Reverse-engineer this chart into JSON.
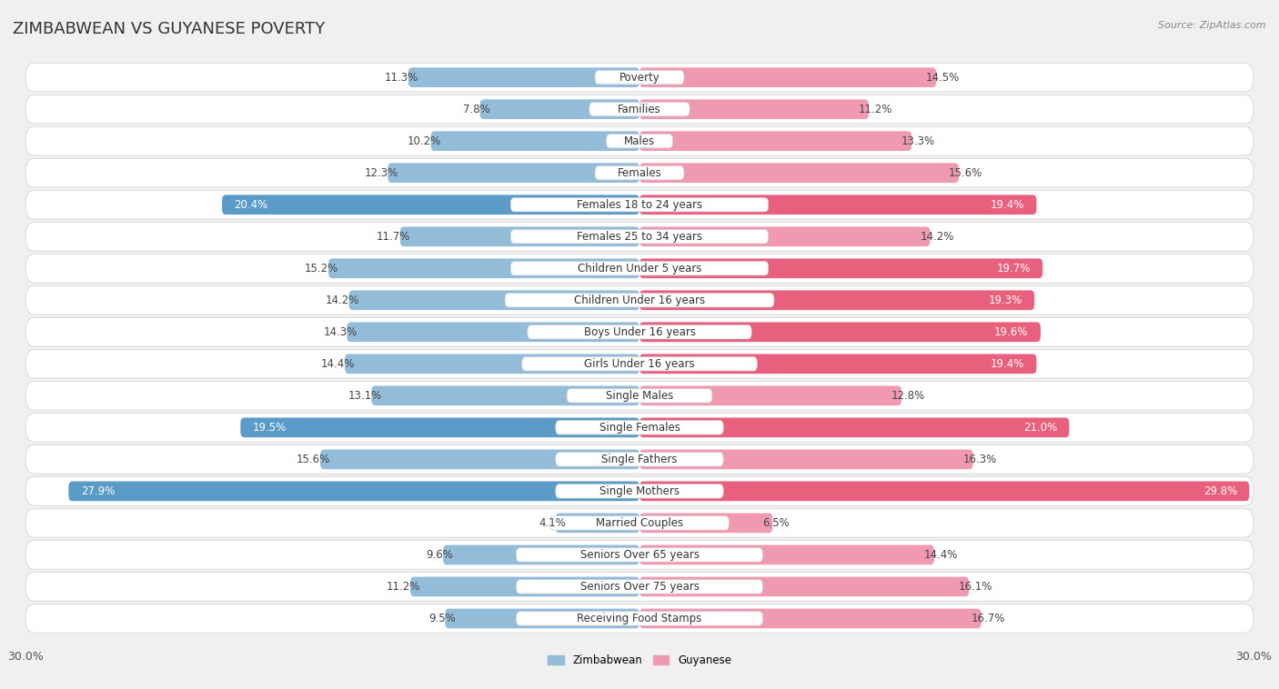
{
  "title": "ZIMBABWEAN VS GUYANESE POVERTY",
  "source": "Source: ZipAtlas.com",
  "categories": [
    "Poverty",
    "Families",
    "Males",
    "Females",
    "Females 18 to 24 years",
    "Females 25 to 34 years",
    "Children Under 5 years",
    "Children Under 16 years",
    "Boys Under 16 years",
    "Girls Under 16 years",
    "Single Males",
    "Single Females",
    "Single Fathers",
    "Single Mothers",
    "Married Couples",
    "Seniors Over 65 years",
    "Seniors Over 75 years",
    "Receiving Food Stamps"
  ],
  "zimbabwean": [
    11.3,
    7.8,
    10.2,
    12.3,
    20.4,
    11.7,
    15.2,
    14.2,
    14.3,
    14.4,
    13.1,
    19.5,
    15.6,
    27.9,
    4.1,
    9.6,
    11.2,
    9.5
  ],
  "guyanese": [
    14.5,
    11.2,
    13.3,
    15.6,
    19.4,
    14.2,
    19.7,
    19.3,
    19.6,
    19.4,
    12.8,
    21.0,
    16.3,
    29.8,
    6.5,
    14.4,
    16.1,
    16.7
  ],
  "zimbabwean_color": "#92bcd8",
  "guyanese_color": "#f09ab2",
  "zimbabwean_highlight_color": "#5b9bc7",
  "guyanese_highlight_color": "#e8607e",
  "background_color": "#f0f0f0",
  "row_bg_color": "#e8e8e8",
  "row_bg_color2": "#f5f5f5",
  "bar_height": 0.62,
  "title_fontsize": 13,
  "label_fontsize": 8.5,
  "value_fontsize": 8.5,
  "tick_fontsize": 9,
  "highlight_threshold": 18.5,
  "max_val": 30.0
}
